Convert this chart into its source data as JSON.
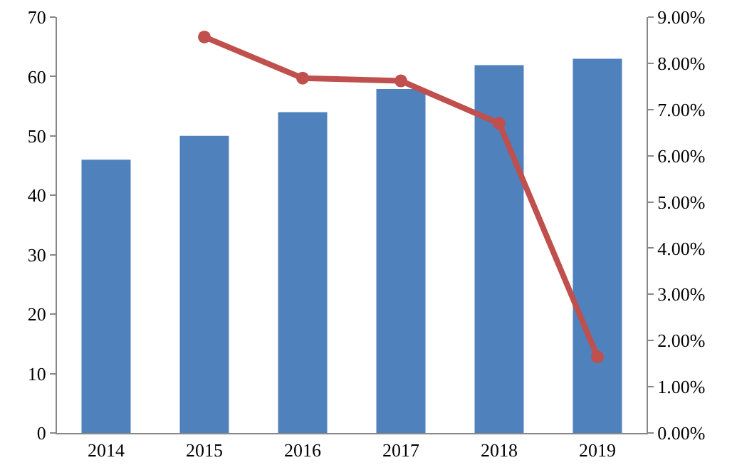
{
  "chart_data": {
    "type": "bar",
    "categories": [
      "2014",
      "2015",
      "2016",
      "2017",
      "2018",
      "2019"
    ],
    "series": [
      {
        "color": "#4f81bd",
        "values": [
          46,
          50,
          54,
          57.9,
          61.9,
          63
        ]
      },
      {
        "type": "line",
        "axis": "y2",
        "color": "#c0504d",
        "marker": "circle",
        "values": [
          null,
          8.57,
          7.68,
          7.62,
          6.7,
          1.65
        ]
      }
    ],
    "ylim": [
      0,
      70
    ],
    "yticks": [
      0,
      10,
      20,
      30,
      40,
      50,
      60,
      70
    ],
    "y2lim": [
      0,
      9
    ],
    "y2ticks": [
      {
        "value": 0,
        "label": "0.00%"
      },
      {
        "value": 1,
        "label": "1.00%"
      },
      {
        "value": 2,
        "label": "2.00%"
      },
      {
        "value": 3,
        "label": "3.00%"
      },
      {
        "value": 4,
        "label": "4.00%"
      },
      {
        "value": 5,
        "label": "5.00%"
      },
      {
        "value": 6,
        "label": "6.00%"
      },
      {
        "value": 7,
        "label": "7.00%"
      },
      {
        "value": 8,
        "label": "8.00%"
      },
      {
        "value": 9,
        "label": "9.00%"
      }
    ],
    "grid": false,
    "legend": false
  }
}
